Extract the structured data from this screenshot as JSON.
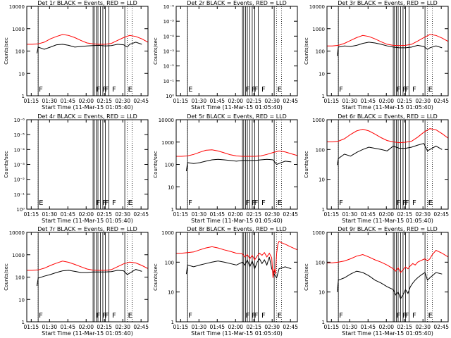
{
  "common": {
    "xlabel": "Start Time (11-Mar-15 01:05:40)",
    "ylabel": "Counts/sec",
    "x_ticks": [
      "01:15",
      "01:30",
      "01:45",
      "02:00",
      "02:15",
      "02:30",
      "02:45"
    ],
    "x_range_minutes": [
      5.67,
      105
    ],
    "flag_x_minutes": [
      15,
      20,
      62,
      63,
      67,
      68,
      69,
      72,
      75,
      88
    ],
    "vertical_lines_minutes": [
      15,
      60,
      61,
      62.5,
      64,
      66,
      68,
      70,
      73,
      86
    ],
    "dotted_lines_minutes": [
      15,
      88,
      92
    ],
    "colors": {
      "events": "#000000",
      "lld": "#ff0000"
    }
  },
  "chart_data": [
    {
      "type": "line",
      "title": "Det 1r BLACK = Events, RED = LLD",
      "scale": "log",
      "ylim": [
        1,
        10000
      ],
      "y_ticks": [
        "1",
        "10",
        "100",
        "1000",
        "10000"
      ],
      "flags": [
        "F",
        "F",
        "F",
        "F",
        "F",
        "F",
        "E"
      ],
      "series": [
        {
          "name": "Events",
          "x": [
            5.67,
            10,
            14,
            15,
            20,
            25,
            30,
            35,
            40,
            45,
            50,
            55,
            60,
            65,
            70,
            75,
            80,
            85,
            88,
            90,
            95,
            100
          ],
          "values": [
            null,
            null,
            80,
            150,
            120,
            150,
            190,
            200,
            180,
            150,
            160,
            170,
            175,
            180,
            170,
            175,
            200,
            190,
            150,
            200,
            250,
            200
          ]
        },
        {
          "name": "LLD",
          "x": [
            5.67,
            10,
            15,
            20,
            25,
            30,
            35,
            40,
            45,
            50,
            55,
            60,
            65,
            70,
            75,
            80,
            85,
            90,
            95,
            100,
            105
          ],
          "values": [
            200,
            200,
            210,
            250,
            350,
            450,
            550,
            500,
            400,
            300,
            230,
            210,
            200,
            200,
            220,
            300,
            400,
            500,
            450,
            350,
            250
          ]
        }
      ]
    },
    {
      "type": "line",
      "title": "Det 2r BLACK = Events, RED = LLD",
      "scale": "log",
      "ylim": [
        1,
        1000000
      ],
      "y_ticks": [
        "10⁰",
        "10⁻¹",
        "10⁻²",
        "10⁻³",
        "10⁻⁴",
        "10⁻⁵",
        "10⁻⁶"
      ],
      "flags": [
        "E",
        "F",
        "F",
        "F",
        "F",
        "F",
        "E"
      ],
      "series": []
    },
    {
      "type": "line",
      "title": "Det 3r BLACK = Events, RED = LLD",
      "scale": "log",
      "ylim": [
        1,
        10000
      ],
      "y_ticks": [
        "1",
        "10",
        "100",
        "1000",
        "10000"
      ],
      "flags": [
        "F",
        "F",
        "F",
        "F",
        "F",
        "F",
        "E"
      ],
      "series": [
        {
          "name": "Events",
          "x": [
            14,
            15,
            20,
            25,
            30,
            35,
            40,
            45,
            50,
            55,
            60,
            65,
            70,
            75,
            80,
            85,
            88,
            90,
            95,
            100
          ],
          "values": [
            60,
            150,
            170,
            160,
            180,
            220,
            250,
            230,
            200,
            170,
            150,
            140,
            140,
            150,
            180,
            160,
            120,
            140,
            170,
            140
          ]
        },
        {
          "name": "LLD",
          "x": [
            5.67,
            10,
            15,
            20,
            25,
            30,
            35,
            40,
            45,
            50,
            55,
            60,
            65,
            70,
            75,
            80,
            85,
            90,
            95,
            100,
            105
          ],
          "values": [
            170,
            170,
            180,
            220,
            300,
            400,
            500,
            450,
            350,
            260,
            200,
            180,
            175,
            180,
            200,
            280,
            400,
            550,
            500,
            380,
            270
          ]
        }
      ]
    },
    {
      "type": "line",
      "title": "Det 4r BLACK = Events, RED = LLD",
      "scale": "log",
      "ylim": [
        1,
        1000000
      ],
      "y_ticks": [
        "10⁰",
        "10⁻¹",
        "10⁻²",
        "10⁻³",
        "10⁻⁴",
        "10⁻⁵",
        "10⁻⁶"
      ],
      "flags": [
        "E",
        "F",
        "F",
        "F",
        "F",
        "F",
        "E"
      ],
      "series": []
    },
    {
      "type": "line",
      "title": "Det 5r BLACK = Events, RED = LLD",
      "scale": "log",
      "ylim": [
        1,
        10000
      ],
      "y_ticks": [
        "1",
        "10",
        "100",
        "1000",
        "10000"
      ],
      "flags": [
        "F",
        "F",
        "F",
        "F",
        "F",
        "F",
        "E"
      ],
      "series": [
        {
          "name": "Events",
          "x": [
            14,
            15,
            20,
            25,
            30,
            35,
            40,
            45,
            50,
            55,
            60,
            65,
            70,
            75,
            80,
            85,
            88,
            90,
            95,
            100
          ],
          "values": [
            50,
            120,
            110,
            120,
            140,
            160,
            170,
            160,
            150,
            140,
            150,
            150,
            150,
            160,
            170,
            160,
            100,
            110,
            140,
            130
          ]
        },
        {
          "name": "LLD",
          "x": [
            5.67,
            10,
            15,
            20,
            25,
            30,
            35,
            40,
            45,
            50,
            55,
            60,
            65,
            70,
            75,
            80,
            85,
            90,
            95,
            100,
            105
          ],
          "values": [
            230,
            230,
            240,
            280,
            350,
            430,
            450,
            400,
            330,
            270,
            240,
            230,
            230,
            230,
            240,
            280,
            340,
            400,
            360,
            300,
            250
          ]
        }
      ]
    },
    {
      "type": "line",
      "title": "Det 6r BLACK = Events, RED = LLD",
      "scale": "log",
      "ylim": [
        1,
        1000
      ],
      "y_ticks": [
        "1",
        "10",
        "100",
        "1000"
      ],
      "flags": [
        "F",
        "F",
        "F",
        "F",
        "F",
        "F",
        "E"
      ],
      "series": [
        {
          "name": "Events",
          "x": [
            14,
            15,
            20,
            25,
            30,
            35,
            40,
            45,
            50,
            55,
            60,
            65,
            70,
            75,
            80,
            85,
            88,
            90,
            95,
            100
          ],
          "values": [
            30,
            50,
            70,
            60,
            80,
            100,
            120,
            110,
            100,
            90,
            130,
            110,
            110,
            120,
            140,
            160,
            90,
            100,
            130,
            100
          ]
        },
        {
          "name": "LLD",
          "x": [
            5.67,
            10,
            15,
            20,
            25,
            30,
            35,
            40,
            45,
            50,
            55,
            60,
            65,
            70,
            75,
            80,
            85,
            90,
            95,
            100,
            105
          ],
          "values": [
            180,
            180,
            190,
            230,
            320,
            420,
            480,
            420,
            330,
            250,
            200,
            180,
            170,
            175,
            190,
            260,
            380,
            500,
            460,
            340,
            240
          ]
        }
      ]
    },
    {
      "type": "line",
      "title": "Det 7r BLACK = Events, RED = LLD",
      "scale": "log",
      "ylim": [
        1,
        10000
      ],
      "y_ticks": [
        "1",
        "10",
        "100",
        "1000",
        "10000"
      ],
      "flags": [
        "F",
        "F",
        "F",
        "F",
        "F",
        "F",
        "E"
      ],
      "series": [
        {
          "name": "Events",
          "x": [
            14,
            15,
            20,
            25,
            30,
            35,
            40,
            45,
            50,
            55,
            60,
            65,
            70,
            75,
            80,
            85,
            88,
            90,
            95,
            100
          ],
          "values": [
            40,
            90,
            110,
            130,
            160,
            190,
            200,
            180,
            160,
            160,
            170,
            170,
            170,
            175,
            200,
            190,
            130,
            150,
            220,
            180
          ]
        },
        {
          "name": "LLD",
          "x": [
            5.67,
            10,
            15,
            20,
            25,
            30,
            35,
            40,
            45,
            50,
            55,
            60,
            65,
            70,
            75,
            80,
            85,
            90,
            95,
            100,
            105
          ],
          "values": [
            200,
            200,
            210,
            250,
            330,
            420,
            520,
            460,
            370,
            290,
            230,
            205,
            200,
            200,
            215,
            290,
            390,
            470,
            430,
            330,
            240
          ]
        }
      ]
    },
    {
      "type": "line",
      "title": "Det 8r BLACK = Events, RED = LLD",
      "scale": "log",
      "ylim": [
        1,
        1000
      ],
      "y_ticks": [
        "1",
        "10",
        "100",
        "1000"
      ],
      "flags": [
        "F",
        "F",
        "F",
        "F",
        "F",
        "F",
        "E"
      ],
      "series": [
        {
          "name": "Events",
          "x": [
            14,
            15,
            20,
            25,
            30,
            35,
            40,
            45,
            50,
            55,
            60,
            62,
            64,
            66,
            68,
            70,
            72,
            74,
            76,
            78,
            80,
            82,
            84,
            86,
            88,
            90,
            95,
            100
          ],
          "values": [
            40,
            80,
            70,
            80,
            90,
            100,
            110,
            100,
            90,
            80,
            100,
            80,
            120,
            70,
            110,
            60,
            100,
            130,
            90,
            120,
            80,
            150,
            60,
            40,
            30,
            60,
            70,
            60
          ]
        },
        {
          "name": "LLD",
          "x": [
            5.67,
            10,
            15,
            20,
            25,
            30,
            35,
            40,
            45,
            50,
            55,
            60,
            62,
            64,
            66,
            68,
            70,
            72,
            74,
            76,
            78,
            80,
            82,
            84,
            85,
            86,
            87,
            88,
            89,
            90,
            92,
            95,
            100,
            105
          ],
          "values": [
            200,
            200,
            210,
            220,
            260,
            300,
            330,
            300,
            260,
            230,
            200,
            190,
            150,
            180,
            130,
            170,
            120,
            160,
            200,
            170,
            210,
            150,
            200,
            140,
            30,
            60,
            40,
            200,
            400,
            500,
            450,
            400,
            320,
            260
          ]
        }
      ]
    },
    {
      "type": "line",
      "title": "Det 9r BLACK = Events, RED = LLD",
      "scale": "log",
      "ylim": [
        1,
        1000
      ],
      "y_ticks": [
        "1",
        "10",
        "100",
        "1000"
      ],
      "flags": [
        "F",
        "F",
        "F",
        "F",
        "F",
        "F",
        "E"
      ],
      "series": [
        {
          "name": "Events",
          "x": [
            14,
            15,
            20,
            25,
            30,
            35,
            40,
            45,
            50,
            55,
            60,
            62,
            64,
            66,
            68,
            70,
            72,
            74,
            76,
            78,
            80,
            82,
            84,
            86,
            88,
            90,
            95,
            100
          ],
          "values": [
            10,
            25,
            30,
            40,
            50,
            45,
            35,
            25,
            20,
            15,
            12,
            8,
            10,
            6,
            8,
            12,
            9,
            15,
            20,
            25,
            30,
            35,
            40,
            45,
            25,
            30,
            45,
            40
          ]
        },
        {
          "name": "LLD",
          "x": [
            5.67,
            10,
            15,
            20,
            25,
            30,
            35,
            40,
            45,
            50,
            55,
            60,
            62,
            64,
            66,
            68,
            70,
            72,
            74,
            76,
            78,
            80,
            82,
            84,
            86,
            88,
            90,
            92,
            95,
            100,
            105
          ],
          "values": [
            95,
            95,
            100,
            110,
            130,
            160,
            180,
            150,
            120,
            100,
            80,
            60,
            50,
            65,
            45,
            55,
            70,
            60,
            75,
            90,
            80,
            100,
            110,
            120,
            130,
            110,
            130,
            180,
            250,
            200,
            150
          ]
        }
      ]
    }
  ]
}
